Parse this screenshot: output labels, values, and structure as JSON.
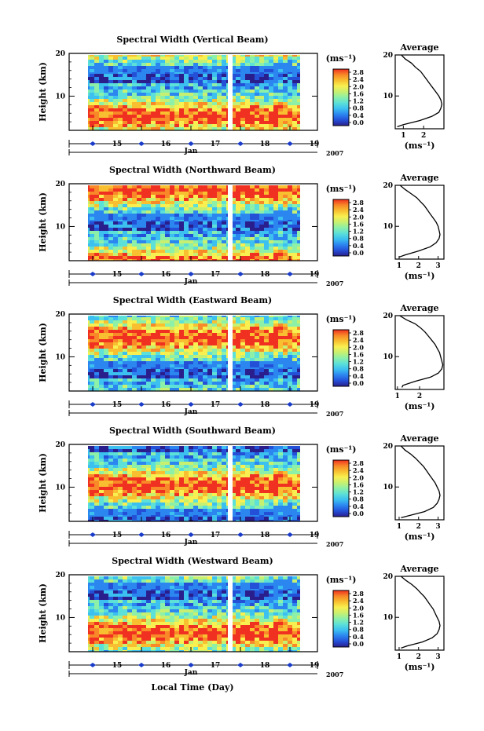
{
  "figure": {
    "xlabel": "Local Time (Day)",
    "month_label": "Jan",
    "year_label": "2007"
  },
  "chart_data": [
    {
      "type": "heatmap",
      "title": "Spectral Width (Vertical Beam)",
      "ylabel": "Height (km)",
      "ylim": [
        2,
        20
      ],
      "yticks": [
        "20",
        "10"
      ],
      "x_days": [
        "15",
        "16",
        "17",
        "18",
        "19"
      ],
      "colorbar": {
        "unit": "(ms⁻¹)",
        "ticks": [
          "2.8",
          "2.4",
          "2.0",
          "1.6",
          "1.2",
          "0.8",
          "0.4",
          "0.0"
        ]
      },
      "average_profile": {
        "title": "Average",
        "xlabel": "(ms⁻¹)",
        "xticks": [
          "1",
          "2"
        ],
        "xlim": [
          0.6,
          3.0
        ],
        "height": [
          2.5,
          3,
          4,
          5,
          6,
          7,
          8,
          9,
          10,
          11,
          12,
          13,
          14,
          15,
          16,
          17,
          18,
          19,
          20
        ],
        "value": [
          0.7,
          1.0,
          1.8,
          2.4,
          2.75,
          2.85,
          2.9,
          2.85,
          2.75,
          2.6,
          2.45,
          2.3,
          2.15,
          2.0,
          1.85,
          1.6,
          1.4,
          1.1,
          0.9
        ]
      }
    },
    {
      "type": "heatmap",
      "title": "Spectral Width (Northward Beam)",
      "ylabel": "Height (km)",
      "ylim": [
        2,
        20
      ],
      "yticks": [
        "20",
        "10"
      ],
      "x_days": [
        "15",
        "16",
        "17",
        "18",
        "19"
      ],
      "colorbar": {
        "unit": "(ms⁻¹)",
        "ticks": [
          "2.8",
          "2.4",
          "2.0",
          "1.6",
          "1.2",
          "0.8",
          "0.4",
          "0.0"
        ]
      },
      "average_profile": {
        "title": "Average",
        "xlabel": "(ms⁻¹)",
        "xticks": [
          "1",
          "2",
          "3"
        ],
        "xlim": [
          0.8,
          3.3
        ],
        "height": [
          2.5,
          3,
          4,
          5,
          6,
          7,
          8,
          9,
          10,
          11,
          12,
          13,
          14,
          15,
          16,
          17,
          18,
          19,
          20
        ],
        "value": [
          1.0,
          1.3,
          2.0,
          2.6,
          2.9,
          3.05,
          3.1,
          3.05,
          3.0,
          2.9,
          2.75,
          2.6,
          2.45,
          2.3,
          2.1,
          1.9,
          1.6,
          1.3,
          1.05
        ]
      }
    },
    {
      "type": "heatmap",
      "title": "Spectral Width (Eastward Beam)",
      "ylabel": "Height (km)",
      "ylim": [
        2,
        20
      ],
      "yticks": [
        "20",
        "10"
      ],
      "x_days": [
        "15",
        "16",
        "17",
        "18",
        "19"
      ],
      "colorbar": {
        "unit": "(ms⁻¹)",
        "ticks": [
          "2.8",
          "2.4",
          "2.0",
          "1.6",
          "1.2",
          "0.8",
          "0.4",
          "0.0"
        ]
      },
      "average_profile": {
        "title": "Average",
        "xlabel": "(ms⁻¹)",
        "xticks": [
          "1",
          "2"
        ],
        "xlim": [
          0.9,
          3.1
        ],
        "height": [
          2.5,
          3,
          4,
          5,
          6,
          7,
          8,
          9,
          10,
          11,
          12,
          13,
          14,
          15,
          16,
          17,
          18,
          19,
          20
        ],
        "value": [
          1.2,
          1.25,
          1.8,
          2.5,
          2.85,
          3.0,
          3.05,
          3.0,
          2.95,
          2.9,
          2.8,
          2.7,
          2.55,
          2.4,
          2.25,
          2.05,
          1.8,
          1.4,
          1.1
        ]
      }
    },
    {
      "type": "heatmap",
      "title": "Spectral Width (Southward Beam)",
      "ylabel": "Height (km)",
      "ylim": [
        2,
        20
      ],
      "yticks": [
        "20",
        "10"
      ],
      "x_days": [
        "15",
        "16",
        "17",
        "18",
        "19"
      ],
      "colorbar": {
        "unit": "(ms⁻¹)",
        "ticks": [
          "2.8",
          "2.4",
          "2.0",
          "1.6",
          "1.2",
          "0.8",
          "0.4",
          "0.0"
        ]
      },
      "average_profile": {
        "title": "Average",
        "xlabel": "(ms⁻¹)",
        "xticks": [
          "1",
          "2",
          "3"
        ],
        "xlim": [
          0.8,
          3.3
        ],
        "height": [
          2.5,
          3,
          4,
          5,
          6,
          7,
          8,
          9,
          10,
          11,
          12,
          13,
          14,
          15,
          16,
          17,
          18,
          19,
          20
        ],
        "value": [
          1.1,
          1.5,
          2.3,
          2.75,
          2.95,
          3.05,
          3.1,
          3.05,
          2.95,
          2.85,
          2.7,
          2.55,
          2.4,
          2.25,
          2.05,
          1.85,
          1.6,
          1.3,
          1.1
        ]
      }
    },
    {
      "type": "heatmap",
      "title": "Spectral Width (Westward Beam)",
      "ylabel": "Height (km)",
      "ylim": [
        2,
        20
      ],
      "yticks": [
        "20",
        "10"
      ],
      "x_days": [
        "15",
        "16",
        "17",
        "18",
        "19"
      ],
      "colorbar": {
        "unit": "(ms⁻¹)",
        "ticks": [
          "2.8",
          "2.4",
          "2.0",
          "1.6",
          "1.2",
          "0.8",
          "0.4",
          "0.0"
        ]
      },
      "average_profile": {
        "title": "Average",
        "xlabel": "(ms⁻¹)",
        "xticks": [
          "1",
          "2",
          "3"
        ],
        "xlim": [
          0.8,
          3.3
        ],
        "height": [
          2.5,
          3,
          4,
          5,
          6,
          7,
          8,
          9,
          10,
          11,
          12,
          13,
          14,
          15,
          16,
          17,
          18,
          19,
          20
        ],
        "value": [
          1.1,
          1.4,
          2.2,
          2.7,
          2.95,
          3.05,
          3.1,
          3.05,
          2.95,
          2.85,
          2.75,
          2.6,
          2.45,
          2.3,
          2.1,
          1.9,
          1.65,
          1.35,
          1.1
        ]
      }
    }
  ],
  "colors": {
    "colormap": [
      "#2a1e8c",
      "#2450d8",
      "#2c86f0",
      "#3cc0f0",
      "#5ce0d8",
      "#8cf0a8",
      "#c8f070",
      "#f8f050",
      "#f8c030",
      "#f88828",
      "#f03020"
    ],
    "tick_marker": "#1a3cc8"
  }
}
